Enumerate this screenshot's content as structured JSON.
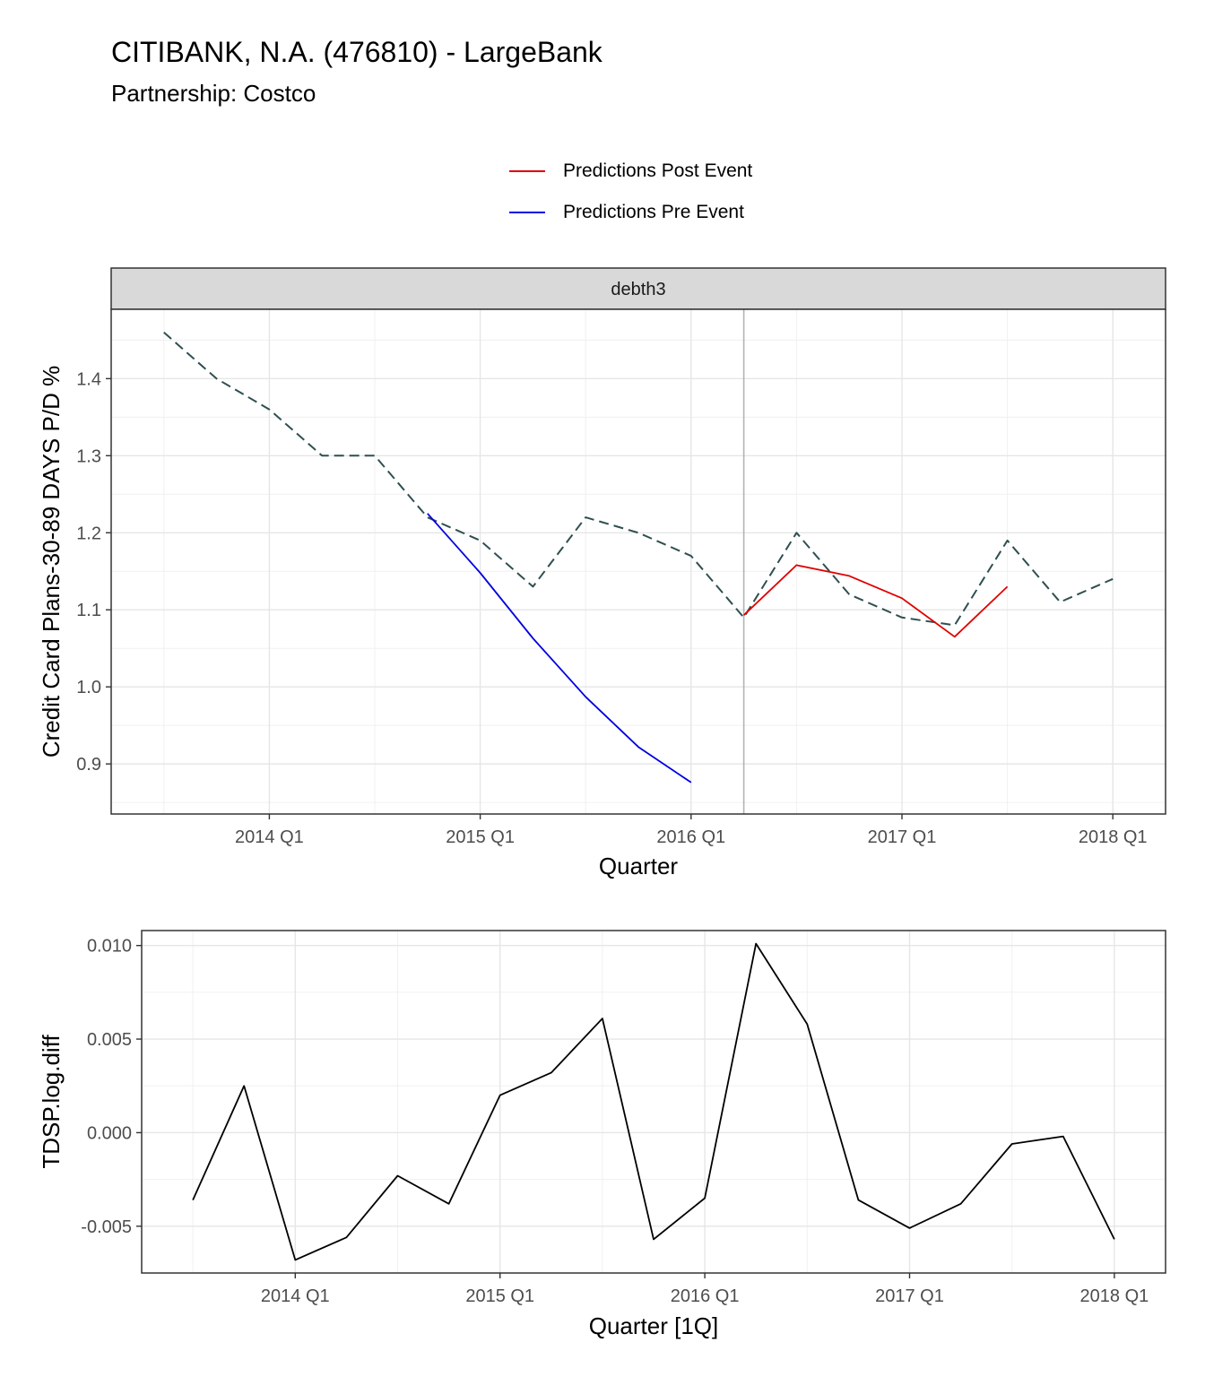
{
  "title": "CITIBANK, N.A. (476810) - LargeBank",
  "subtitle": "Partnership: Costco",
  "legend": {
    "placement": "top",
    "items": [
      {
        "label": "Predictions Post Event",
        "color": "#e00000"
      },
      {
        "label": "Predictions Pre Event",
        "color": "#0000e0"
      }
    ]
  },
  "chart_data": [
    {
      "type": "line",
      "facet_label": "debth3",
      "xlabel": "Quarter",
      "ylabel": "Credit Card Plans-30-89 DAYS P/D %",
      "x_ticks": [
        "2014 Q1",
        "2015 Q1",
        "2016 Q1",
        "2017 Q1",
        "2018 Q1"
      ],
      "xlim": [
        "2013 Q2",
        "2018 Q2"
      ],
      "ylim": [
        0.835,
        1.49
      ],
      "y_ticks": [
        0.9,
        1.0,
        1.1,
        1.2,
        1.3,
        1.4
      ],
      "y_tick_labels": [
        "0.9",
        "1.0",
        "1.1",
        "1.2",
        "1.3",
        "1.4"
      ],
      "grid": true,
      "event_line_x": "2016 Q2",
      "event_line_color": "#b3b3b3",
      "series": [
        {
          "color": "#2f4f4f",
          "dash": true,
          "x": [
            "2013 Q3",
            "2013 Q4",
            "2014 Q1",
            "2014 Q2",
            "2014 Q3",
            "2014 Q4",
            "2015 Q1",
            "2015 Q2",
            "2015 Q3",
            "2015 Q4",
            "2016 Q1",
            "2016 Q2",
            "2016 Q3",
            "2016 Q4",
            "2017 Q1",
            "2017 Q2",
            "2017 Q3",
            "2017 Q4",
            "2018 Q1"
          ],
          "values": [
            1.46,
            1.4,
            1.36,
            1.3,
            1.3,
            1.22,
            1.19,
            1.13,
            1.22,
            1.2,
            1.17,
            1.09,
            1.2,
            1.12,
            1.09,
            1.08,
            1.19,
            1.11,
            1.14
          ]
        },
        {
          "name": "Predictions Pre Event",
          "color": "#0000e0",
          "dash": false,
          "x": [
            "2014 Q4",
            "2015 Q1",
            "2015 Q2",
            "2015 Q3",
            "2015 Q4",
            "2016 Q1"
          ],
          "values": [
            1.225,
            1.148,
            1.063,
            0.987,
            0.922,
            0.876
          ]
        },
        {
          "name": "Predictions Post Event",
          "color": "#e00000",
          "dash": false,
          "x": [
            "2016 Q2",
            "2016 Q3",
            "2016 Q4",
            "2017 Q1",
            "2017 Q2",
            "2017 Q3"
          ],
          "values": [
            1.093,
            1.158,
            1.144,
            1.115,
            1.065,
            1.13
          ]
        }
      ]
    },
    {
      "type": "line",
      "xlabel": "Quarter [1Q]",
      "ylabel": "TDSP.log.diff",
      "x_ticks": [
        "2014 Q1",
        "2015 Q1",
        "2016 Q1",
        "2017 Q1",
        "2018 Q1"
      ],
      "xlim": [
        "2013 Q2",
        "2018 Q2"
      ],
      "ylim": [
        -0.0075,
        0.0108
      ],
      "y_ticks": [
        -0.005,
        0.0,
        0.005,
        0.01
      ],
      "y_tick_labels": [
        "-0.005",
        "0.000",
        "0.005",
        "0.010"
      ],
      "grid": true,
      "series": [
        {
          "color": "#000000",
          "dash": false,
          "x": [
            "2013 Q3",
            "2013 Q4",
            "2014 Q1",
            "2014 Q2",
            "2014 Q3",
            "2014 Q4",
            "2015 Q1",
            "2015 Q2",
            "2015 Q3",
            "2015 Q4",
            "2016 Q1",
            "2016 Q2",
            "2016 Q3",
            "2016 Q4",
            "2017 Q1",
            "2017 Q2",
            "2017 Q3",
            "2017 Q4",
            "2018 Q1"
          ],
          "values": [
            -0.0036,
            0.0025,
            -0.0068,
            -0.0056,
            -0.0023,
            -0.0038,
            0.002,
            0.0032,
            0.0061,
            -0.0057,
            -0.0035,
            0.0101,
            0.0058,
            -0.0036,
            -0.0051,
            -0.0038,
            -0.0006,
            -0.0002,
            -0.0057
          ]
        }
      ]
    }
  ]
}
